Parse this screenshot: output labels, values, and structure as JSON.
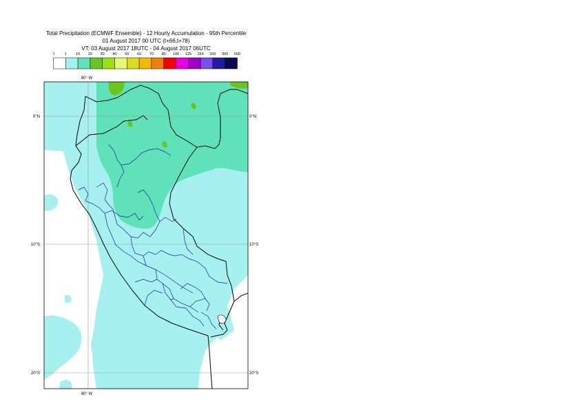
{
  "title": {
    "line1": "Total Precipitation (ECMWF Ensemble) - 12 Hourly Accumulation - 95th Percentile",
    "line2": "01 August 2017 00 UTC (t+66,t+78)",
    "line3": "VT: 03 August 2017 18UTC - 04 August 2017 06UTC"
  },
  "legend": {
    "thresholds": [
      "0",
      "1",
      "10",
      "20",
      "30",
      "40",
      "50",
      "60",
      "70",
      "80",
      "100",
      "125",
      "150",
      "200",
      "300",
      "500"
    ],
    "colors": [
      "#ffffff",
      "#a6f0f0",
      "#5fe2b8",
      "#6cc41e",
      "#9ce012",
      "#e6f870",
      "#dcdc1e",
      "#f4b800",
      "#f08010",
      "#fa0000",
      "#e600e6",
      "#a000c8",
      "#7850f0",
      "#1e1ea0",
      "#0a0a50"
    ]
  },
  "map": {
    "lon_labels": [
      "80° W",
      "80° W"
    ],
    "lat_labels": {
      "eq_left": "0°N",
      "eq_right": "0°N",
      "s10_left": "10°S",
      "s10_right": "10°S",
      "s20_left": "20°S",
      "s20_right": "20°S"
    },
    "colors": {
      "background": "#ffffff",
      "precip_1_10": "#a6f0f0",
      "precip_10_20": "#5fe2b8",
      "precip_20_30": "#6cc41e",
      "precip_30_40": "#9ce012",
      "coastline": "#000000",
      "regional_borders": "#1e1ea0",
      "graticule": "#9a9a9a"
    }
  }
}
